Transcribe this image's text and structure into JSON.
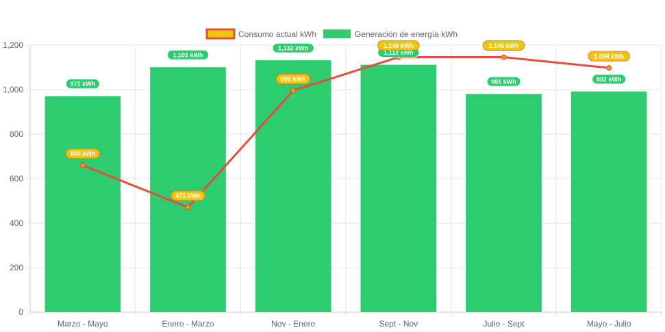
{
  "chart_data": {
    "type": "bar",
    "categories": [
      "Marzo - Mayo",
      "Enero - Marzo",
      "Nov - Enero",
      "Sept - Nov",
      "Julio - Sept",
      "Mayo - Julio"
    ],
    "series": [
      {
        "name": "Consumo actual kWh",
        "type": "line",
        "values": [
          660,
          471,
          996,
          1146,
          1146,
          1098
        ],
        "labels": [
          "660 kWh",
          "471 kWh",
          "996 kWh",
          "1,146 kWh",
          "1,146 kWh",
          "1,098 kWh"
        ],
        "color": "#e74c3c",
        "label_color": "#f1c40f"
      },
      {
        "name": "Generación de energía kWh",
        "type": "bar",
        "values": [
          971,
          1101,
          1132,
          1112,
          981,
          992
        ],
        "labels": [
          "971 kWh",
          "1,101 kWh",
          "1,132 kWh",
          "1,112 kWh",
          "981 kWh",
          "992 kWh"
        ],
        "color": "#2ecc71"
      }
    ],
    "ylim": [
      0,
      1200
    ],
    "yticks": [
      0,
      200,
      400,
      600,
      800,
      1000,
      1200
    ],
    "ytick_labels": [
      "0",
      "200",
      "400",
      "600",
      "800",
      "1,000",
      "1,200"
    ],
    "grid": true,
    "legend_position": "top-center"
  }
}
